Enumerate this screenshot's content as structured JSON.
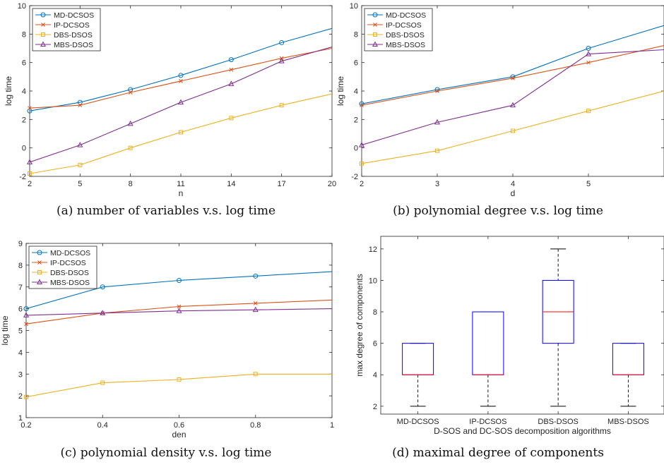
{
  "captions": [
    "(a)  number of variables v.s. log time",
    "(b)  polynomial degree v.s. log time",
    "(c)  polynomial density v.s. log time",
    "(d)  maximal degree of components"
  ],
  "series_colors": [
    "#0072BD",
    "#D95319",
    "#EDB120",
    "#7E2F8E"
  ],
  "chart_data": [
    {
      "type": "line",
      "xlabel": "n",
      "ylabel": "log time",
      "x": [
        2,
        5,
        8,
        11,
        14,
        17,
        20
      ],
      "xticks": [
        "2",
        "5",
        "8",
        "11",
        "14",
        "17",
        "20"
      ],
      "xlim": [
        2,
        20
      ],
      "ylim": [
        -2,
        10
      ],
      "yticks": [
        "-2",
        "0",
        "2",
        "4",
        "6",
        "8",
        "10"
      ],
      "legend": "top-left",
      "series": [
        {
          "name": "MD-DCSOS",
          "marker": "circle",
          "values": [
            2.6,
            3.2,
            4.1,
            5.1,
            6.2,
            7.4,
            8.4
          ]
        },
        {
          "name": "IP-DCSOS",
          "marker": "x",
          "values": [
            2.8,
            3.0,
            3.9,
            4.7,
            5.5,
            6.3,
            7.0
          ]
        },
        {
          "name": "DBS-DSOS",
          "marker": "square",
          "values": [
            -1.8,
            -1.2,
            0.0,
            1.1,
            2.1,
            3.0,
            3.8
          ]
        },
        {
          "name": "MBS-DSOS",
          "marker": "triangle",
          "values": [
            -1.0,
            0.2,
            1.7,
            3.2,
            4.5,
            6.1,
            7.1
          ]
        }
      ]
    },
    {
      "type": "line",
      "xlabel": "d",
      "ylabel": "log time",
      "x": [
        2,
        3,
        4,
        5,
        6
      ],
      "xticks": [
        "2",
        "3",
        "4",
        "5"
      ],
      "xtick_values": [
        2,
        3,
        4,
        5
      ],
      "xlim": [
        2,
        6
      ],
      "ylim": [
        -2,
        10
      ],
      "yticks": [
        "-2",
        "0",
        "2",
        "4",
        "6",
        "8",
        "10"
      ],
      "legend": "top-left",
      "series": [
        {
          "name": "MD-DCSOS",
          "marker": "circle",
          "values": [
            3.1,
            4.1,
            5.0,
            7.0,
            8.6
          ]
        },
        {
          "name": "IP-DCSOS",
          "marker": "x",
          "values": [
            3.0,
            4.0,
            4.9,
            6.0,
            7.2
          ]
        },
        {
          "name": "DBS-DSOS",
          "marker": "square",
          "values": [
            -1.1,
            -0.2,
            1.2,
            2.6,
            4.0
          ]
        },
        {
          "name": "MBS-DSOS",
          "marker": "triangle",
          "values": [
            0.2,
            1.8,
            3.0,
            6.6,
            6.9
          ]
        }
      ]
    },
    {
      "type": "line",
      "xlabel": "den",
      "ylabel": "log time",
      "x": [
        0.2,
        0.4,
        0.6,
        0.8,
        1.0
      ],
      "xticks": [
        "0.2",
        "0.4",
        "0.6",
        "0.8",
        "1"
      ],
      "xlim": [
        0.2,
        1.0
      ],
      "ylim": [
        1,
        9
      ],
      "yticks": [
        "1",
        "2",
        "3",
        "4",
        "5",
        "6",
        "7",
        "8",
        "9"
      ],
      "legend": "top-left",
      "series": [
        {
          "name": "MD-DCSOS",
          "marker": "circle",
          "values": [
            6.0,
            7.0,
            7.3,
            7.5,
            7.7
          ]
        },
        {
          "name": "IP-DCSOS",
          "marker": "x",
          "values": [
            5.3,
            5.8,
            6.1,
            6.25,
            6.4
          ]
        },
        {
          "name": "DBS-DSOS",
          "marker": "square",
          "values": [
            1.95,
            2.6,
            2.75,
            3.0,
            3.0
          ]
        },
        {
          "name": "MBS-DSOS",
          "marker": "triangle",
          "values": [
            5.7,
            5.8,
            5.9,
            5.95,
            6.0
          ]
        }
      ]
    },
    {
      "type": "box",
      "xlabel": "D-SOS and DC-SOS decomposition algorithms",
      "ylabel": "max degree of components",
      "categories": [
        "MD-DCSOS",
        "IP-DCSOS",
        "DBS-DSOS",
        "MBS-DSOS"
      ],
      "ylim": [
        1.5,
        12.8
      ],
      "yticks": [
        "2",
        "4",
        "6",
        "8",
        "10",
        "12"
      ],
      "boxes": [
        {
          "min": 2,
          "q1": 4,
          "median": 4,
          "q3": 6,
          "max": 6
        },
        {
          "min": 2,
          "q1": 4,
          "median": 4,
          "q3": 8,
          "max": 8
        },
        {
          "min": 2,
          "q1": 6,
          "median": 8,
          "q3": 10,
          "max": 12
        },
        {
          "min": 2,
          "q1": 4,
          "median": 4,
          "q3": 6,
          "max": 6
        }
      ]
    }
  ]
}
